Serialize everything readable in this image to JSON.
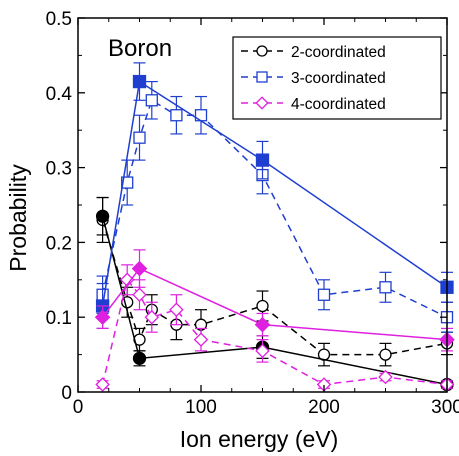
{
  "chart_data": {
    "type": "line",
    "title": "",
    "xlabel": "Ion energy (eV)",
    "ylabel": "Probability",
    "annotation": "Boron",
    "xlim": [
      0,
      300
    ],
    "ylim": [
      0,
      0.5
    ],
    "xticks": [
      0,
      100,
      200,
      300
    ],
    "yticks": [
      0,
      0.1,
      0.2,
      0.3,
      0.4,
      0.5
    ],
    "xtick_labels": [
      "0",
      "100",
      "200",
      "300"
    ],
    "ytick_labels": [
      "0",
      "0.1",
      "0.2",
      "0.3",
      "0.4",
      "0.5"
    ],
    "grid": false,
    "legend_position": "top-right",
    "legend": [
      "2-coordinated",
      "3-coordinated",
      "4-coordinated"
    ],
    "colors": {
      "c2": "#000000",
      "c3": "#1f3fd0",
      "c4": "#e020e0"
    },
    "series": [
      {
        "name": "2-coordinated",
        "group": "c2",
        "style": "dashed",
        "marker": "circle-open",
        "x": [
          20,
          40,
          50,
          60,
          80,
          100,
          150,
          200,
          250,
          300
        ],
        "y": [
          0.23,
          0.12,
          0.07,
          0.11,
          0.09,
          0.09,
          0.115,
          0.05,
          0.05,
          0.065
        ],
        "err": [
          0.03,
          0.02,
          0.015,
          0.02,
          0.02,
          0.02,
          0.02,
          0.015,
          0.015,
          0.015
        ]
      },
      {
        "group": "c2",
        "style": "solid",
        "marker": "circle-filled",
        "x": [
          20,
          50,
          150,
          300
        ],
        "y": [
          0.235,
          0.045,
          0.06,
          0.01
        ],
        "err": [
          0.025,
          0.01,
          0.015,
          0.005
        ]
      },
      {
        "name": "3-coordinated",
        "group": "c3",
        "style": "dashed",
        "marker": "square-open",
        "x": [
          20,
          40,
          50,
          60,
          80,
          100,
          150,
          200,
          250,
          300
        ],
        "y": [
          0.13,
          0.28,
          0.34,
          0.39,
          0.37,
          0.37,
          0.29,
          0.13,
          0.14,
          0.1
        ],
        "err": [
          0.025,
          0.03,
          0.03,
          0.025,
          0.025,
          0.025,
          0.025,
          0.02,
          0.02,
          0.02
        ]
      },
      {
        "group": "c3",
        "style": "solid",
        "marker": "square-filled",
        "x": [
          20,
          50,
          150,
          300
        ],
        "y": [
          0.115,
          0.415,
          0.31,
          0.14
        ],
        "err": [
          0.03,
          0.025,
          0.025,
          0.02
        ]
      },
      {
        "name": "4-coordinated",
        "group": "c4",
        "style": "dashed",
        "marker": "diamond-open",
        "x": [
          20,
          40,
          50,
          60,
          80,
          100,
          150,
          200,
          250,
          300
        ],
        "y": [
          0.01,
          0.15,
          0.13,
          0.1,
          0.11,
          0.07,
          0.055,
          0.01,
          0.02,
          0.01
        ],
        "err": [
          0.005,
          0.02,
          0.02,
          0.02,
          0.02,
          0.015,
          0.015,
          0.005,
          0.005,
          0.005
        ]
      },
      {
        "group": "c4",
        "style": "solid",
        "marker": "diamond-filled",
        "x": [
          20,
          50,
          150,
          300
        ],
        "y": [
          0.1,
          0.165,
          0.09,
          0.07
        ],
        "err": [
          0.015,
          0.025,
          0.015,
          0.015
        ]
      }
    ]
  }
}
